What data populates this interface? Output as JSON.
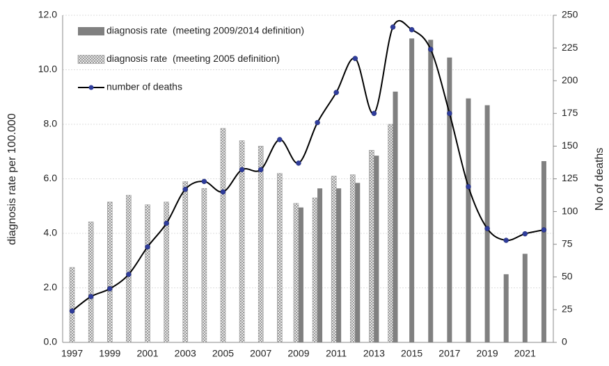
{
  "chart_data": {
    "type": "bar-line",
    "categories": [
      "1997",
      null,
      "1999",
      null,
      "2001",
      null,
      "2003",
      null,
      "2005",
      null,
      "2007",
      null,
      "2009",
      null,
      "2011",
      null,
      "2013",
      null,
      "2015",
      null,
      "2017",
      null,
      "2019",
      null,
      "2021",
      null
    ],
    "series": [
      {
        "name": "diagnosis rate  (meeting 2009/2014 definition)",
        "type": "bar",
        "color": "#808080",
        "values": [
          null,
          null,
          null,
          null,
          null,
          null,
          null,
          null,
          null,
          null,
          null,
          null,
          4.95,
          5.65,
          5.65,
          5.85,
          6.85,
          9.2,
          11.15,
          11.1,
          10.45,
          8.95,
          8.7,
          2.5,
          3.25,
          6.65
        ]
      },
      {
        "name": "diagnosis rate  (meeting 2005 definition)",
        "type": "bar",
        "color": "#9a9a9a",
        "hatch": true,
        "values": [
          2.75,
          4.42,
          5.15,
          5.4,
          5.05,
          5.15,
          5.9,
          5.65,
          7.85,
          7.4,
          7.2,
          6.2,
          5.1,
          5.3,
          6.1,
          6.15,
          7.05,
          8.0,
          null,
          null,
          null,
          null,
          null,
          null,
          null,
          null
        ]
      },
      {
        "name": "number of deaths",
        "type": "line",
        "axis": "y2",
        "color": "#000000",
        "marker_color": "#2f3d9c",
        "smooth": true,
        "values": [
          24,
          35,
          41,
          52,
          73,
          91,
          117,
          123,
          115,
          132,
          132,
          155,
          137,
          168,
          191,
          217,
          175,
          241,
          239,
          224,
          175,
          119,
          87,
          78,
          83,
          86
        ]
      }
    ],
    "ylabel": "diagnosis rate per 100.000",
    "y2label": "No of deaths",
    "ylim": [
      0,
      12
    ],
    "yticks": [
      {
        "value": 0,
        "label": "0.0"
      },
      {
        "value": 2,
        "label": "2.0"
      },
      {
        "value": 4,
        "label": "4.0"
      },
      {
        "value": 6,
        "label": "6.0"
      },
      {
        "value": 8,
        "label": "8.0"
      },
      {
        "value": 10,
        "label": "10.0"
      },
      {
        "value": 12,
        "label": "12.0"
      }
    ],
    "y2lim": [
      0,
      250
    ],
    "y2ticks": [
      0,
      25,
      50,
      75,
      100,
      125,
      150,
      175,
      200,
      225,
      250
    ],
    "grid": true,
    "legend": "upper left"
  }
}
